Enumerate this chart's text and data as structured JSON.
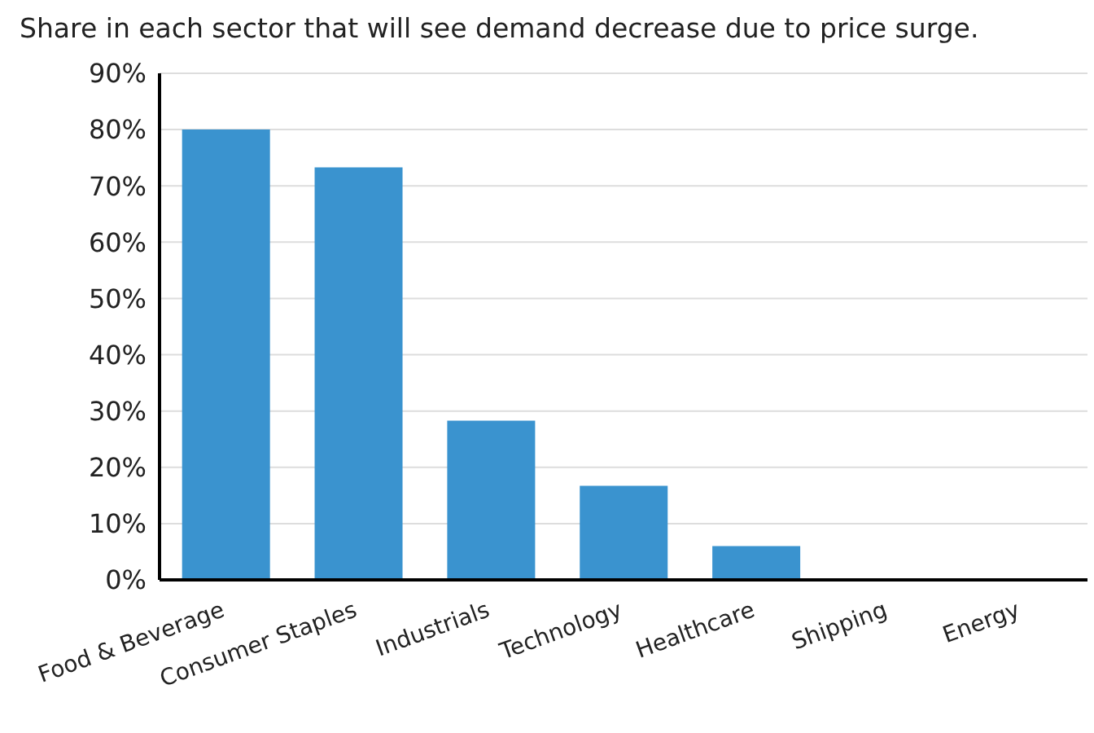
{
  "chart_data": {
    "type": "bar",
    "title": "Share in each sector that will see demand decrease due to price surge.",
    "categories": [
      "Food & Beverage",
      "Consumer Staples",
      "Industrials",
      "Technology",
      "Healthcare",
      "Shipping",
      "Energy"
    ],
    "values": [
      80,
      73.3,
      28.3,
      16.7,
      6,
      0,
      0
    ],
    "color": "#3a93cf",
    "ylim": [
      0,
      90
    ],
    "yticks": [
      {
        "value": 0,
        "label": "0%"
      },
      {
        "value": 10,
        "label": "10%"
      },
      {
        "value": 20,
        "label": "20%"
      },
      {
        "value": 30,
        "label": "30%"
      },
      {
        "value": 40,
        "label": "40%"
      },
      {
        "value": 50,
        "label": "50%"
      },
      {
        "value": 60,
        "label": "60%"
      },
      {
        "value": 70,
        "label": "70%"
      },
      {
        "value": 80,
        "label": "80%"
      },
      {
        "value": 90,
        "label": "90%"
      }
    ],
    "grid": "y"
  }
}
